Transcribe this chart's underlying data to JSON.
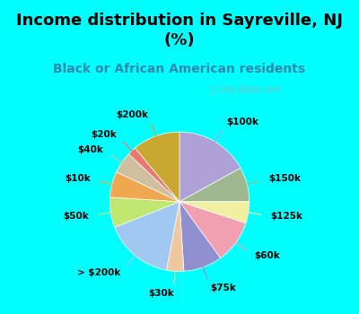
{
  "title": "Income distribution in Sayreville, NJ\n(%)",
  "subtitle": "Black or African American residents",
  "bg_outer": "#00FFFF",
  "bg_inner_color": "#d8eed8",
  "watermark": "ⓘ City-Data.com",
  "labels": [
    "$100k",
    "$150k",
    "$125k",
    "$60k",
    "$75k",
    "$30k",
    "> $200k",
    "$50k",
    "$10k",
    "$40k",
    "$20k",
    "$200k"
  ],
  "values": [
    17,
    8,
    5,
    10,
    9,
    4,
    16,
    7,
    6,
    5,
    2,
    11
  ],
  "colors": [
    "#b0a0d8",
    "#a0b890",
    "#f0f0a0",
    "#f0a0b0",
    "#9090d0",
    "#f0c8a0",
    "#a0c8f0",
    "#c0e870",
    "#f0a850",
    "#d0c0a0",
    "#e87870",
    "#c8a830"
  ],
  "label_fontsize": 7.5,
  "title_fontsize": 13,
  "subtitle_fontsize": 10,
  "startangle": 90
}
